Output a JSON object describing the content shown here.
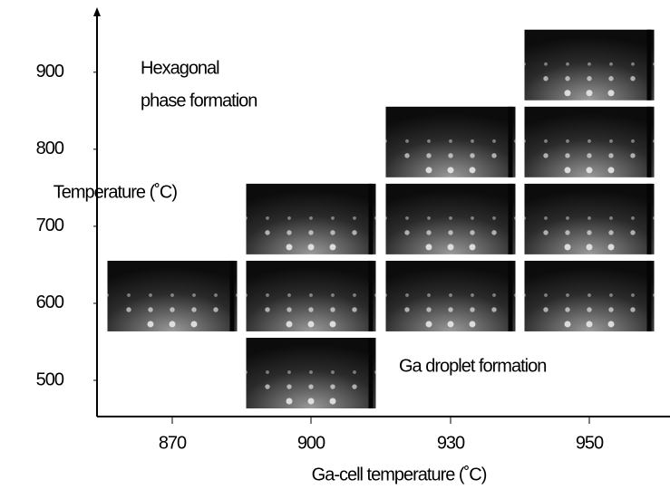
{
  "chart_data": {
    "type": "image-grid",
    "x_label": "Ga-cell temperature (˚C)",
    "y_label": "Temperature (˚C)",
    "categories": [
      "870",
      "900",
      "930",
      "950"
    ],
    "ylim": [
      453,
      982
    ],
    "yticks": [
      500,
      600,
      700,
      800,
      900
    ],
    "annotations": [
      "Hexagonal",
      "phase formation",
      "Ga droplet formation"
    ],
    "panels": [
      {
        "x": "870",
        "y": 600
      },
      {
        "x": "900",
        "y": 500
      },
      {
        "x": "900",
        "y": 600
      },
      {
        "x": "900",
        "y": 700
      },
      {
        "x": "930",
        "y": 600
      },
      {
        "x": "930",
        "y": 700
      },
      {
        "x": "930",
        "y": 800
      },
      {
        "x": "950",
        "y": 600
      },
      {
        "x": "950",
        "y": 700
      },
      {
        "x": "950",
        "y": 800
      },
      {
        "x": "950",
        "y": 900
      }
    ]
  }
}
